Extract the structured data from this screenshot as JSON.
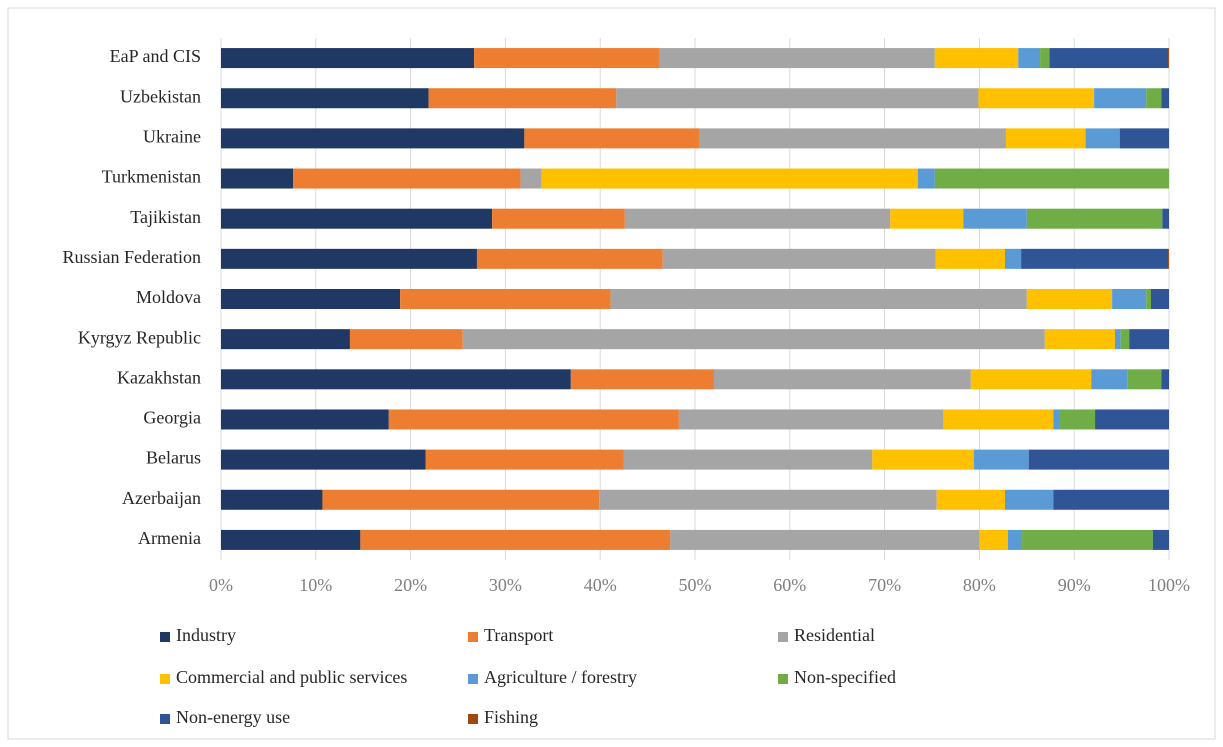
{
  "chart_data": {
    "type": "stacked-bar-horizontal",
    "categories": [
      "EaP and CIS",
      "Uzbekistan",
      "Ukraine",
      "Turkmenistan",
      "Tajikistan",
      "Russian Federation",
      "Moldova",
      "Kyrgyz Republic",
      "Kazakhstan",
      "Georgia",
      "Belarus",
      "Azerbaijan",
      "Armenia"
    ],
    "series": [
      {
        "name": "Industry",
        "color": "#203864",
        "values": [
          26.7,
          21.9,
          32.0,
          7.6,
          28.6,
          27.0,
          18.9,
          13.6,
          36.9,
          17.7,
          21.6,
          10.7,
          14.7
        ]
      },
      {
        "name": "Transport",
        "color": "#ed7d31",
        "values": [
          19.5,
          19.8,
          18.5,
          24.0,
          14.0,
          19.6,
          22.2,
          11.9,
          15.1,
          30.6,
          20.9,
          29.2,
          32.7
        ]
      },
      {
        "name": "Residential",
        "color": "#a5a5a5",
        "values": [
          29.1,
          38.2,
          32.3,
          2.2,
          28.0,
          28.8,
          43.9,
          61.4,
          27.1,
          27.9,
          26.2,
          35.6,
          32.6
        ]
      },
      {
        "name": "Commercial and public services",
        "color": "#ffc000",
        "values": [
          8.8,
          12.2,
          8.4,
          39.7,
          7.7,
          7.3,
          9.0,
          7.4,
          12.7,
          11.6,
          10.7,
          7.2,
          3.0
        ]
      },
      {
        "name": "Agriculture / forestry",
        "color": "#5b9bd5",
        "values": [
          2.3,
          5.5,
          3.6,
          1.8,
          6.7,
          1.7,
          3.6,
          0.6,
          3.8,
          0.6,
          5.8,
          5.1,
          1.5
        ]
      },
      {
        "name": "Non-specified",
        "color": "#70ad47",
        "values": [
          1.0,
          1.6,
          0,
          24.7,
          14.3,
          0,
          0.5,
          0.9,
          3.6,
          3.8,
          0,
          0,
          13.8
        ]
      },
      {
        "name": "Non-energy use",
        "color": "#2f5597",
        "values": [
          12.5,
          0.8,
          5.2,
          0,
          0.7,
          15.5,
          1.9,
          4.2,
          0.8,
          7.8,
          14.8,
          12.2,
          1.7
        ]
      },
      {
        "name": "Fishing",
        "color": "#9e480e",
        "values": [
          0.1,
          0,
          0,
          0,
          0,
          0.1,
          0,
          0,
          0,
          0,
          0,
          0,
          0
        ]
      }
    ],
    "xlim": [
      0,
      100
    ],
    "xticks": [
      {
        "value": 0,
        "label": "0%"
      },
      {
        "value": 10,
        "label": "10%"
      },
      {
        "value": 20,
        "label": "20%"
      },
      {
        "value": 30,
        "label": "30%"
      },
      {
        "value": 40,
        "label": "40%"
      },
      {
        "value": 50,
        "label": "50%"
      },
      {
        "value": 60,
        "label": "60%"
      },
      {
        "value": 70,
        "label": "70%"
      },
      {
        "value": 80,
        "label": "80%"
      },
      {
        "value": 90,
        "label": "90%"
      },
      {
        "value": 100,
        "label": "100%"
      }
    ],
    "grid": true
  }
}
